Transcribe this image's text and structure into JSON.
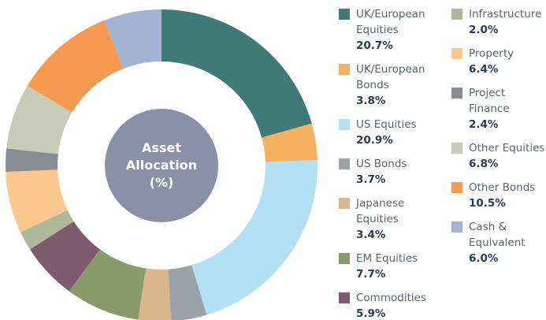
{
  "chart_data": {
    "type": "donut",
    "title": "Asset Allocation (%)",
    "categories": [
      "UK/European Equities",
      "UK/European Bonds",
      "US Equities",
      "US Bonds",
      "Japanese Equities",
      "EM Equities",
      "Commodities",
      "Infrastructure",
      "Property",
      "Project Finance",
      "Other Equities",
      "Other Bonds",
      "Cash & Equivalent"
    ],
    "values": [
      20.7,
      3.8,
      20.9,
      3.7,
      3.4,
      7.7,
      5.9,
      2.0,
      6.4,
      2.4,
      6.8,
      10.5,
      6.0
    ],
    "value_labels": [
      "20.7%",
      "3.8%",
      "20.9%",
      "3.7%",
      "3.4%",
      "7.7%",
      "5.9%",
      "2.0%",
      "6.4%",
      "2.4%",
      "6.8%",
      "10.5%",
      "6.0%"
    ],
    "colors": [
      "#3f7a78",
      "#f5b060",
      "#b3e0f5",
      "#9ba3a8",
      "#d9b68c",
      "#8a9a6a",
      "#7d5a6e",
      "#b0b89a",
      "#fcc890",
      "#878d93",
      "#c8cbb8",
      "#f59a50",
      "#a2b4d4"
    ]
  }
}
